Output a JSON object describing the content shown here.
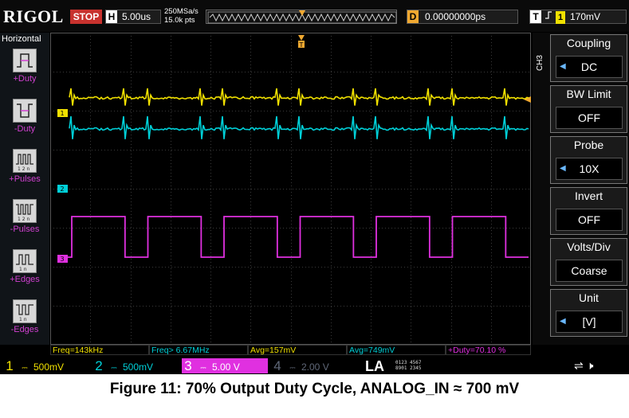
{
  "topbar": {
    "brand": "RIGOL",
    "run_state": "STOP",
    "horizontal_key": "H",
    "horizontal_scale": "5.00us",
    "sample_rate": "250MSa/s",
    "memory_depth": "15.0k pts",
    "delay_key": "D",
    "delay_value": "0.00000000ps",
    "trigger_key": "T",
    "trigger_source": "1",
    "trigger_level": "170mV"
  },
  "left_menu": {
    "title": "Horizontal",
    "items": [
      {
        "label": "+Duty",
        "icon": "positive-duty-icon"
      },
      {
        "label": "-Duty",
        "icon": "negative-duty-icon"
      },
      {
        "label": "+Pulses",
        "icon": "positive-pulses-icon"
      },
      {
        "label": "-Pulses",
        "icon": "negative-pulses-icon"
      },
      {
        "label": "+Edges",
        "icon": "positive-edges-icon"
      },
      {
        "label": "-Edges",
        "icon": "negative-edges-icon"
      }
    ]
  },
  "right_menu": {
    "channel_tag": "CH3",
    "items": [
      {
        "title": "Coupling",
        "value": "DC"
      },
      {
        "title": "BW Limit",
        "value": "OFF"
      },
      {
        "title": "Probe",
        "value": "10X"
      },
      {
        "title": "Invert",
        "value": "OFF"
      },
      {
        "title": "Volts/Div",
        "value": "Coarse"
      },
      {
        "title": "Unit",
        "value": "[V]"
      }
    ]
  },
  "measurements": [
    {
      "text": "Freq=143kHz",
      "color": "#f0e000"
    },
    {
      "text": "Freq> 6.67MHz",
      "color": "#00d0d8"
    },
    {
      "text": "Avg=157mV",
      "color": "#f0e000"
    },
    {
      "text": "Avg=749mV",
      "color": "#00d0d8"
    },
    {
      "text": "+Duty=70.10 %",
      "color": "#e030e0"
    }
  ],
  "channels": [
    {
      "num": "1",
      "scale": "500mV",
      "color": "#f0e000",
      "active": false
    },
    {
      "num": "2",
      "scale": "500mV",
      "color": "#00d0d8",
      "active": false
    },
    {
      "num": "3",
      "scale": "5.00 V",
      "color": "#e030e0",
      "active": true
    },
    {
      "num": "4",
      "scale": "2.00 V",
      "color": "#606878",
      "active": false
    }
  ],
  "channel_markers": [
    "1",
    "2",
    "3"
  ],
  "la": {
    "label": "LA",
    "digits_top": "0123 4567",
    "digits_bottom": "8901 2345"
  },
  "caption": "Figure 11: 70% Output Duty Cycle, ANALOG_IN ≈ 700 mV"
}
